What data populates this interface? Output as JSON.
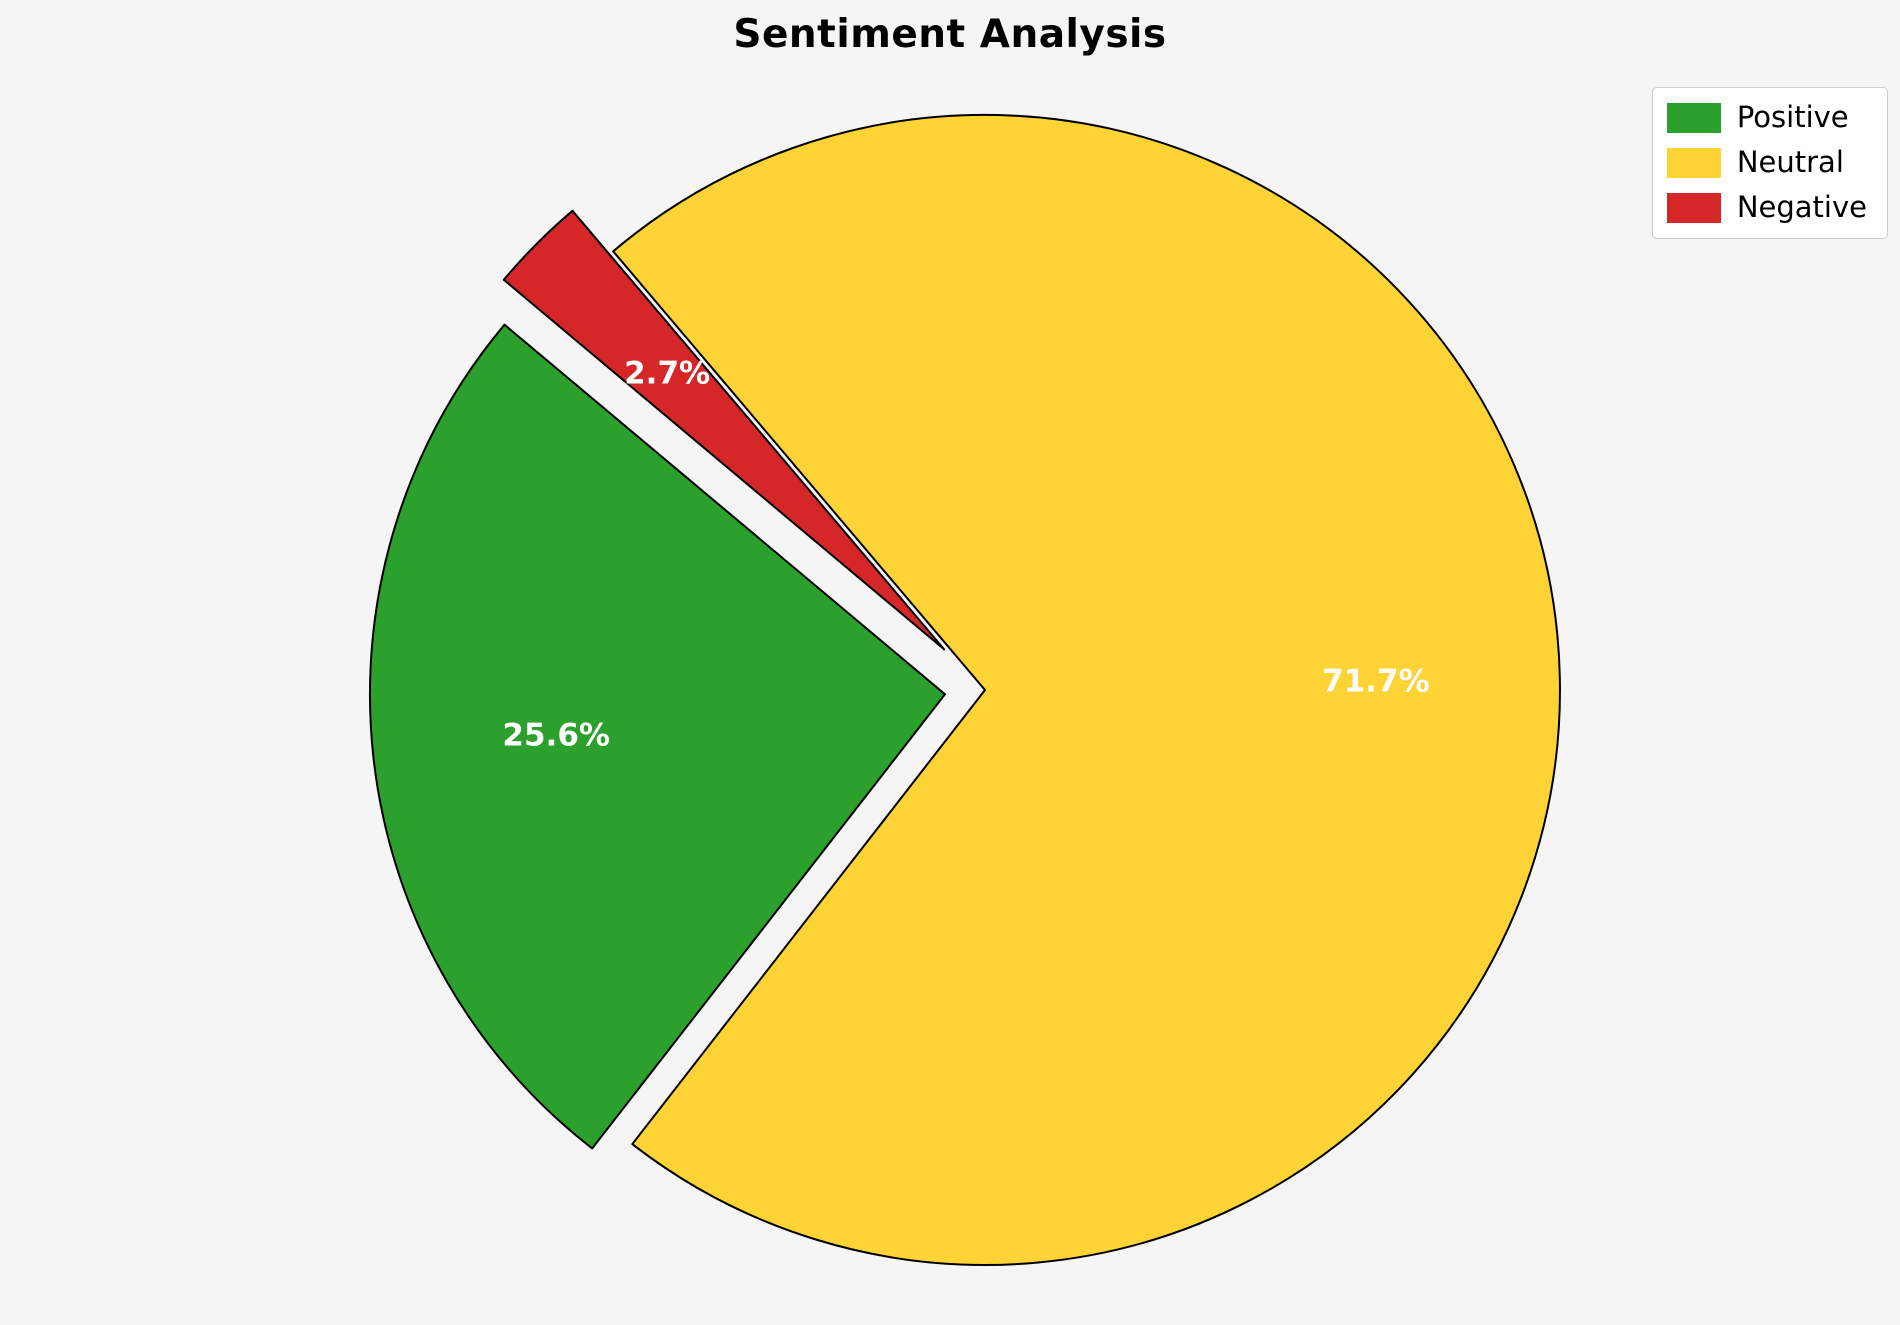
{
  "chart_data": {
    "type": "pie",
    "title": "Sentiment Analysis",
    "slices": [
      {
        "label": "Positive",
        "value": 25.6,
        "pct_label": "25.6%",
        "color": "#2ca02c",
        "explode": 0.07
      },
      {
        "label": "Neutral",
        "value": 71.7,
        "pct_label": "71.7%",
        "color": "#fdd335",
        "explode": 0
      },
      {
        "label": "Negative",
        "value": 2.7,
        "pct_label": "2.7%",
        "color": "#d62728",
        "explode": 0.1
      }
    ],
    "start_angle": 140,
    "direction": "counterclockwise",
    "pct_distance": 0.68,
    "label_color": "#ffffff",
    "edge_color": "#000000",
    "background_color": "#f5f5f5",
    "legend": {
      "position": "upper right"
    }
  }
}
